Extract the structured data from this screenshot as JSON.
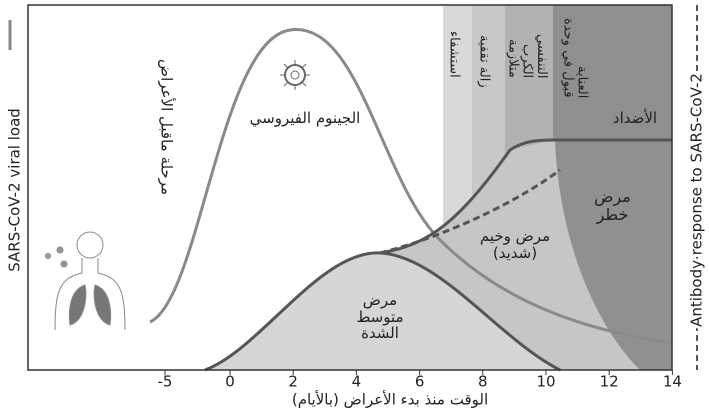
{
  "y_axis_label": "SARS-CoV-2 viral load",
  "right_axis_label": "Antibody response to SARS-CoV-2",
  "phase_labels": [
    "استشفاء",
    "زالة تقفية",
    "متلازمة الكرب التنفسي",
    "قبول في وحدة العناية"
  ],
  "annotations": {
    "presymptomatic": "مرحلة ماقبل الأعراض",
    "viral_genome": "الجينوم الفيروسي",
    "antibodies": "الأضداد",
    "critical": "مرض خطر",
    "severe": "مرض وخيم (شديد)",
    "moderate": "مرض متوسط الشدة"
  },
  "x_axis": {
    "label": "الوقت منذ بدء الأعراض (بالأيام)",
    "ticks": [
      -5,
      0,
      2,
      4,
      6,
      8,
      10,
      12,
      14
    ]
  }
}
